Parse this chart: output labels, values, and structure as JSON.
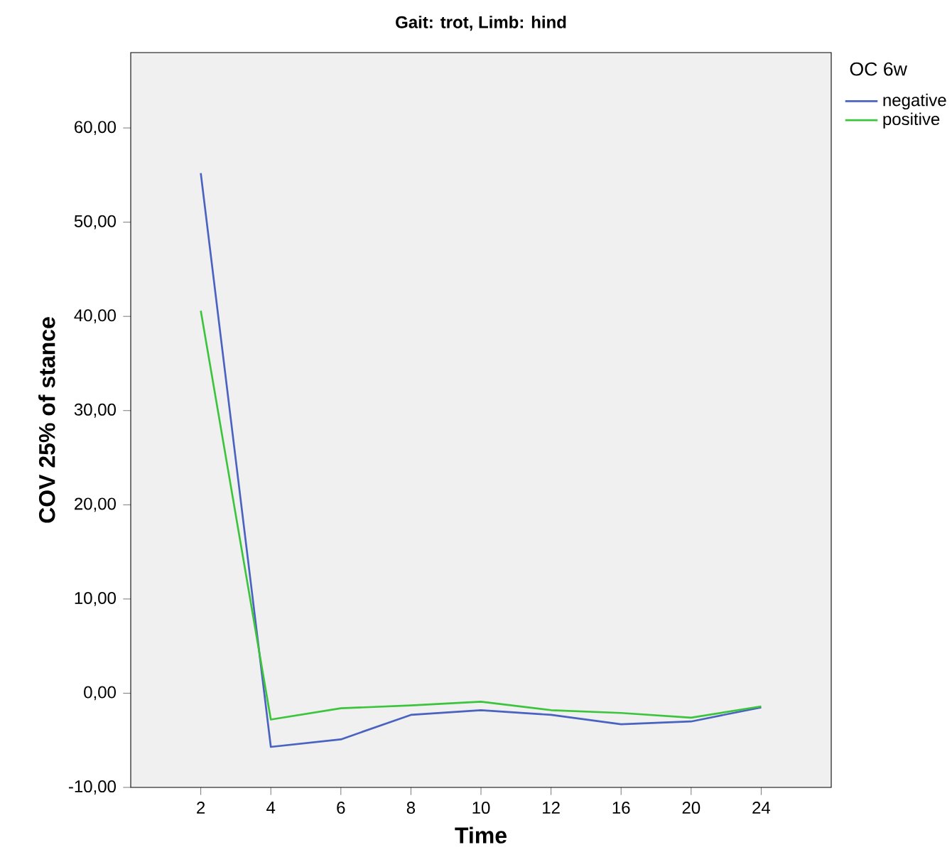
{
  "chart_data": {
    "type": "line",
    "title": "Gait: trot, Limb: hind",
    "xlabel": "Time",
    "ylabel": "COV 25% of stance",
    "legend_title": "OC 6w",
    "categories": [
      "2",
      "4",
      "6",
      "8",
      "10",
      "12",
      "16",
      "20",
      "24"
    ],
    "series": [
      {
        "name": "negative",
        "color": "#4a62c0",
        "values": [
          55.2,
          -5.7,
          -4.9,
          -2.3,
          -1.8,
          -2.3,
          -3.3,
          -3.0,
          -1.5
        ]
      },
      {
        "name": "positive",
        "color": "#3cc43c",
        "values": [
          40.6,
          -2.8,
          -1.6,
          -1.3,
          -0.9,
          -1.8,
          -2.1,
          -2.6,
          -1.4
        ]
      }
    ],
    "ylim": [
      -10,
      68
    ],
    "yticks": [
      {
        "value": -10,
        "label": "-10,00"
      },
      {
        "value": 0,
        "label": "0,00"
      },
      {
        "value": 10,
        "label": "10,00"
      },
      {
        "value": 20,
        "label": "20,00"
      },
      {
        "value": 30,
        "label": "30,00"
      },
      {
        "value": 40,
        "label": "40,00"
      },
      {
        "value": 50,
        "label": "50,00"
      },
      {
        "value": 60,
        "label": "60,00"
      }
    ],
    "grid": false,
    "legend": "top right"
  }
}
